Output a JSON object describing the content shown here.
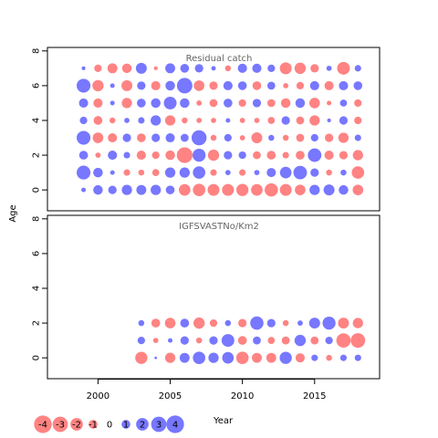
{
  "colors": {
    "positive": "#4a4aff",
    "negative": "#ff5a5a",
    "frame": "#000000",
    "panel_title": "#666666"
  },
  "chart_data": {
    "type": "scatter",
    "encoding": "bubble: symbol size proportional to |residual|; blue = positive, red = negative",
    "ylabel": "Age",
    "xlabel": "Year",
    "x_ticks": [
      "2000",
      "2005",
      "2010",
      "2015"
    ],
    "y_ticks": [
      "0",
      "2",
      "4",
      "6",
      "8"
    ],
    "xlim": [
      1996.5,
      2019.5
    ],
    "ylim": [
      -1.2,
      8.2
    ],
    "years": [
      1999,
      2000,
      2001,
      2002,
      2003,
      2004,
      2005,
      2006,
      2007,
      2008,
      2009,
      2010,
      2011,
      2012,
      2013,
      2014,
      2015,
      2016,
      2017,
      2018
    ],
    "panels": [
      {
        "title": "Residual catch",
        "ages": [
          0,
          1,
          2,
          3,
          4,
          5,
          6,
          7
        ],
        "residuals": [
          [
            0.3,
            1.3,
            1.0,
            1.5,
            1.4,
            1.5,
            1.1,
            -1.9,
            -2.2,
            -2.0,
            -2.0,
            -2.1,
            -1.9,
            -2.5,
            -2.0,
            -1.6,
            1.5,
            1.7,
            1.3,
            -1.6
          ],
          [
            2.7,
            1.3,
            0.3,
            -0.6,
            -0.5,
            -0.7,
            1.5,
            1.5,
            2.2,
            -0.6,
            0.4,
            -0.6,
            0.4,
            1.2,
            1.9,
            2.6,
            1.0,
            -0.5,
            0.5,
            -2.2
          ],
          [
            1.1,
            -0.4,
            1.2,
            0.6,
            -1.2,
            -0.8,
            -1.3,
            -3.5,
            2.4,
            -1.8,
            1.0,
            0.8,
            -0.9,
            -1.1,
            -0.6,
            -1.1,
            2.6,
            -1.2,
            -1.0,
            -1.5
          ],
          [
            2.7,
            -1.6,
            -1.2,
            1.0,
            -1.1,
            1.0,
            1.2,
            0.9,
            3.2,
            -0.5,
            0.8,
            -0.4,
            -1.7,
            0.5,
            -0.5,
            -0.9,
            0.8,
            -1.0,
            -1.5,
            0.6
          ],
          [
            0.8,
            -1.1,
            -0.5,
            0.4,
            0.6,
            1.5,
            -1.5,
            -0.5,
            -0.4,
            -0.4,
            0.3,
            -0.4,
            -0.4,
            -0.7,
            1.0,
            -0.9,
            -1.5,
            0.2,
            1.0,
            -0.8
          ],
          [
            1.2,
            -1.2,
            0.3,
            -1.5,
            1.1,
            1.3,
            2.3,
            1.3,
            -0.4,
            -0.9,
            1.1,
            -0.8,
            1.0,
            -0.9,
            -1.3,
            1.3,
            -1.6,
            -0.3,
            0.7,
            -0.8
          ],
          [
            2.7,
            -1.8,
            0.3,
            -1.7,
            1.0,
            -1.2,
            1.3,
            3.4,
            -1.6,
            -1.0,
            1.2,
            1.1,
            -1.1,
            0.9,
            -0.4,
            -0.8,
            1.2,
            -1.2,
            1.2,
            1.1
          ],
          [
            0.2,
            -0.8,
            -1.4,
            -1.3,
            1.7,
            -0.2,
            1.4,
            1.1,
            1.0,
            0.3,
            -0.5,
            1.2,
            1.2,
            0.8,
            -2.0,
            -1.8,
            -1.0,
            0.4,
            -2.3,
            0.6
          ]
        ]
      },
      {
        "title": "IGFSVASTNo/Km2",
        "ages": [
          0,
          1,
          2
        ],
        "residuals": [
          [
            null,
            null,
            null,
            null,
            -2.1,
            0.1,
            -1.5,
            1.4,
            2.2,
            1.5,
            1.9,
            -2.2,
            -1.4,
            -1.4,
            2.1,
            -1.2,
            0.6,
            -0.5,
            0.6,
            0.6
          ],
          [
            null,
            null,
            null,
            null,
            0.8,
            -0.4,
            0.3,
            1.0,
            -0.5,
            1.0,
            2.3,
            -1.1,
            0.9,
            -0.7,
            -0.9,
            1.8,
            -0.9,
            0.8,
            -2.9,
            -3.0
          ],
          [
            null,
            null,
            null,
            null,
            0.5,
            -1.1,
            -1.6,
            1.1,
            -1.8,
            -0.8,
            0.5,
            -1.0,
            2.5,
            1.0,
            -0.5,
            0.4,
            1.7,
            2.4,
            -1.7,
            -1.5
          ]
        ]
      }
    ],
    "legend": {
      "position": "bottom-left",
      "values": [
        -4,
        -3,
        -2,
        -1,
        0,
        1,
        2,
        3,
        4
      ],
      "labels": [
        "-4",
        "-3",
        "-2",
        "-1",
        "0",
        "1",
        "2",
        "3",
        "4"
      ]
    }
  }
}
